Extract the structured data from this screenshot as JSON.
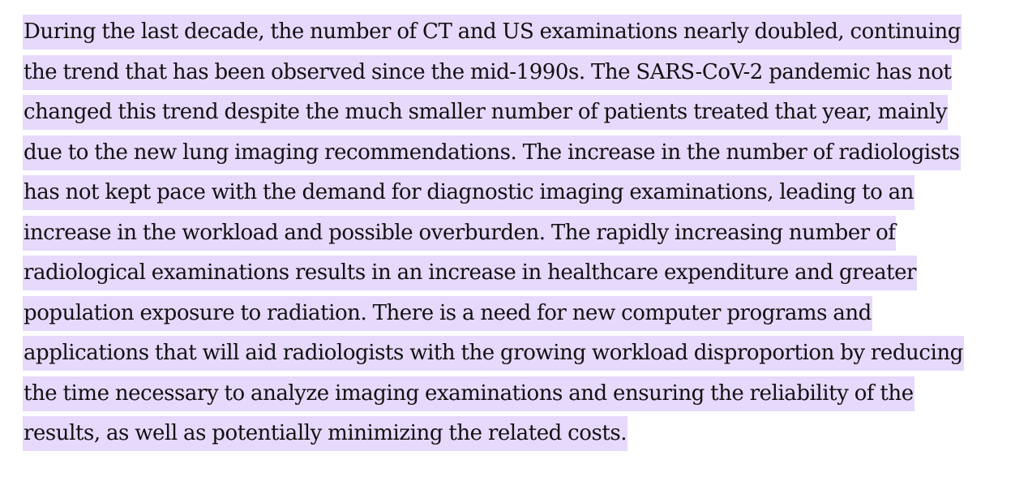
{
  "paragraph": {
    "lines": [
      "During the last decade, the number of CT and US examinations nearly doubled, continuing",
      "the trend that has been observed since the mid-1990s. The SARS-CoV-2 pandemic has not",
      "changed this trend despite the much smaller number of patients treated that year, mainly",
      "due to the new lung imaging recommendations. The increase in the number of radiologists",
      "has not kept pace with the demand for diagnostic imaging examinations, leading to an",
      "increase in the workload and possible overburden. The rapidly increasing number of",
      "radiological examinations results in an increase in healthcare expenditure and greater",
      "population exposure to radiation. There is a need for new computer programs and",
      "applications that will aid radiologists with the growing workload disproportion by reducing",
      "the time necessary to analyze imaging examinations and ensuring the reliability of the",
      "results, as well as potentially minimizing the related costs."
    ]
  },
  "colors": {
    "highlight": "#e6d9fb",
    "text": "#111111"
  }
}
